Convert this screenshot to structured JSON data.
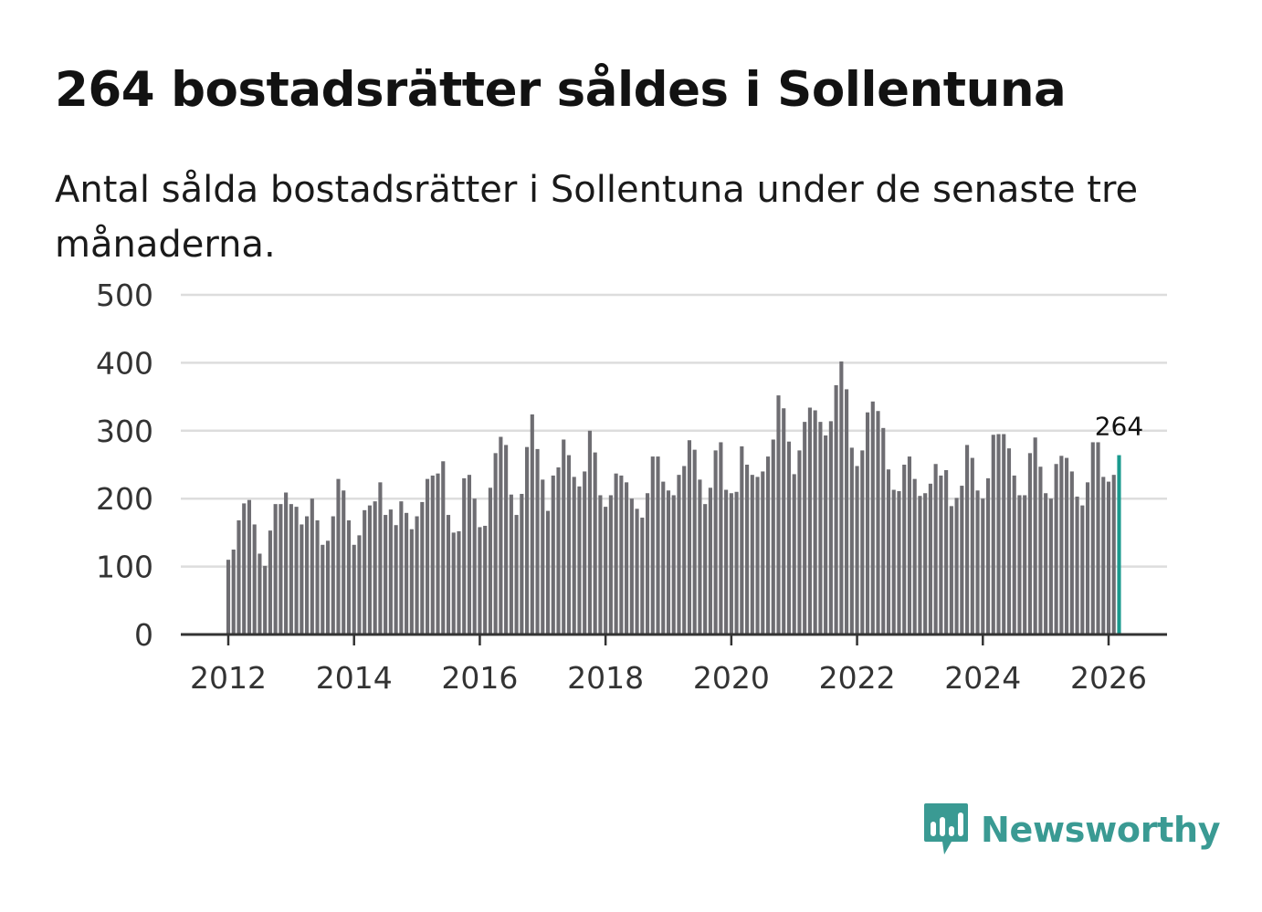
{
  "header": {
    "title": "264 bostadsrätter såldes i Sollentuna",
    "subtitle": "Antal sålda bostadsrätter i Sollentuna under de senaste tre månaderna."
  },
  "colors": {
    "bar": "#6e6d72",
    "highlight": "#1a9a8e",
    "grid": "#dddddd",
    "axis": "#333333",
    "brand": "#3a9a93"
  },
  "brand": {
    "name": "Newsworthy",
    "icon": "newsworthy-chart-icon"
  },
  "chart_data": {
    "type": "bar",
    "title": "264 bostadsrätter såldes i Sollentuna",
    "xlabel": "",
    "ylabel": "",
    "ylim": [
      0,
      500
    ],
    "yticks": [
      "0",
      "100",
      "200",
      "300",
      "400",
      "500"
    ],
    "xticks": [
      "2012",
      "2014",
      "2016",
      "2018",
      "2020",
      "2022",
      "2024",
      "2026"
    ],
    "start": "2012-01",
    "grid": true,
    "highlight_label": "264",
    "values": [
      110,
      125,
      168,
      193,
      198,
      162,
      119,
      101,
      153,
      192,
      192,
      209,
      192,
      188,
      162,
      174,
      200,
      168,
      132,
      138,
      174,
      229,
      212,
      168,
      132,
      146,
      183,
      190,
      196,
      224,
      176,
      184,
      161,
      196,
      179,
      155,
      174,
      195,
      229,
      234,
      237,
      255,
      176,
      150,
      152,
      230,
      235,
      200,
      158,
      160,
      216,
      267,
      291,
      279,
      206,
      176,
      207,
      276,
      324,
      273,
      228,
      182,
      234,
      246,
      287,
      264,
      232,
      218,
      240,
      300,
      268,
      205,
      188,
      205,
      237,
      234,
      224,
      200,
      185,
      172,
      208,
      262,
      262,
      225,
      212,
      205,
      235,
      248,
      286,
      272,
      228,
      192,
      216,
      271,
      283,
      213,
      208,
      210,
      277,
      250,
      235,
      232,
      240,
      262,
      287,
      352,
      333,
      284,
      236,
      271,
      313,
      334,
      330,
      313,
      293,
      314,
      367,
      402,
      361,
      275,
      248,
      271,
      327,
      343,
      329,
      304,
      243,
      213,
      211,
      250,
      262,
      229,
      204,
      208,
      222,
      251,
      234,
      242,
      189,
      201,
      219,
      279,
      260,
      212,
      200,
      230,
      294,
      295,
      295,
      274,
      234,
      205,
      205,
      267,
      290,
      247,
      208,
      200,
      251,
      263,
      260,
      240,
      203,
      190,
      224,
      283,
      283,
      232,
      225,
      235,
      264
    ]
  }
}
